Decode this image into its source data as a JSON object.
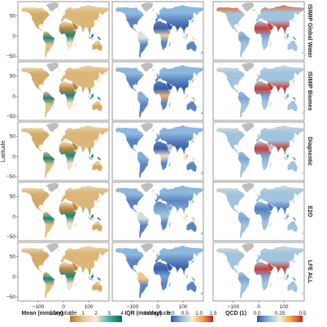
{
  "chart_data": {
    "type": "heatmap",
    "kind": "small-multiple global land maps",
    "title": "",
    "ylabel": "Latitude",
    "xlabel": "Longitude",
    "ylim": [
      -60,
      85
    ],
    "xlim": [
      -180,
      180
    ],
    "y_ticks": [
      "50",
      "0",
      "−50"
    ],
    "x_ticks": [
      "−100",
      "0",
      "100"
    ],
    "y_tick_values": [
      50,
      0,
      -50
    ],
    "x_tick_values": [
      -100,
      0,
      100
    ],
    "rows": [
      "ISIMIP Global Water",
      "ISIMIP Biomes",
      "Diagnostic",
      "E2O",
      "LFE ALL"
    ],
    "columns": [
      {
        "metric": "mean",
        "legend_label": "Mean (mm/day)",
        "ticks": [
          "0",
          "1",
          "2",
          "3",
          "4"
        ],
        "range": [
          0,
          4
        ],
        "colors": [
          "#b47a2c",
          "#e6c88e",
          "#f3ecd8",
          "#4ab0a0",
          "#07665e"
        ]
      },
      {
        "metric": "iqr",
        "legend_label": "IQR (mm/day)",
        "ticks": [
          "0.0",
          "0.5",
          "1.0",
          "1.5"
        ],
        "range": [
          0,
          1.5
        ],
        "colors": [
          "#2f55a5",
          "#8db8de",
          "#f4f1d8",
          "#f0a44c",
          "#c2212e"
        ]
      },
      {
        "metric": "qcd",
        "legend_label": "QCD (1)",
        "ticks": [
          "0.0",
          "0.25",
          "0.5"
        ],
        "range": [
          0,
          0.5
        ],
        "colors": [
          "#2f55a5",
          "#8db8de",
          "#f4f1d8",
          "#f0a44c",
          "#c2212e"
        ]
      }
    ],
    "no_data_color": "#bdbdbd",
    "grid": false
  }
}
